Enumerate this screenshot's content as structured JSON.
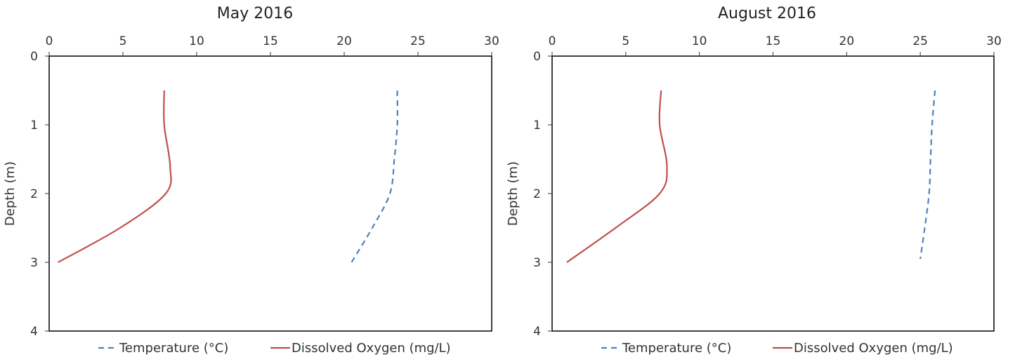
{
  "chart_data": [
    {
      "type": "line",
      "title": "May 2016",
      "xlabel": "",
      "ylabel": "Depth (m)",
      "xlim": [
        0,
        30
      ],
      "ylim": [
        0,
        4
      ],
      "y_inverted": true,
      "x_axis_position": "top",
      "x_ticks": [
        "0",
        "5",
        "10",
        "15",
        "20",
        "25",
        "30"
      ],
      "y_ticks": [
        "0",
        "1",
        "2",
        "3",
        "4"
      ],
      "grid": false,
      "legend_position": "bottom",
      "series": [
        {
          "name": "Temperature (°C)",
          "color": "#4f81bd",
          "dash": "dashed",
          "points": [
            [
              23.6,
              0.5
            ],
            [
              23.6,
              1.0
            ],
            [
              23.4,
              1.5
            ],
            [
              23.1,
              2.0
            ],
            [
              21.9,
              2.5
            ],
            [
              20.5,
              3.0
            ]
          ]
        },
        {
          "name": "Dissolved Oxygen (mg/L)",
          "color": "#c0504d",
          "dash": "solid",
          "points": [
            [
              7.8,
              0.5
            ],
            [
              7.8,
              1.0
            ],
            [
              8.2,
              1.6
            ],
            [
              7.9,
              2.0
            ],
            [
              4.8,
              2.5
            ],
            [
              0.6,
              3.0
            ]
          ]
        }
      ]
    },
    {
      "type": "line",
      "title": "August 2016",
      "xlabel": "",
      "ylabel": "Depth (m)",
      "xlim": [
        0,
        30
      ],
      "ylim": [
        0,
        4
      ],
      "y_inverted": true,
      "x_axis_position": "top",
      "x_ticks": [
        "0",
        "5",
        "10",
        "15",
        "20",
        "25",
        "30"
      ],
      "y_ticks": [
        "0",
        "1",
        "2",
        "3",
        "4"
      ],
      "grid": false,
      "legend_position": "bottom",
      "series": [
        {
          "name": "Temperature (°C)",
          "color": "#4f81bd",
          "dash": "dashed",
          "points": [
            [
              26.0,
              0.5
            ],
            [
              25.8,
              1.0
            ],
            [
              25.7,
              1.5
            ],
            [
              25.6,
              2.0
            ],
            [
              25.3,
              2.5
            ],
            [
              25.0,
              2.95
            ]
          ]
        },
        {
          "name": "Dissolved Oxygen (mg/L)",
          "color": "#c0504d",
          "dash": "solid",
          "points": [
            [
              7.4,
              0.5
            ],
            [
              7.3,
              1.0
            ],
            [
              7.8,
              1.6
            ],
            [
              7.3,
              2.0
            ],
            [
              4.3,
              2.5
            ],
            [
              1.0,
              3.0
            ]
          ]
        }
      ]
    }
  ]
}
